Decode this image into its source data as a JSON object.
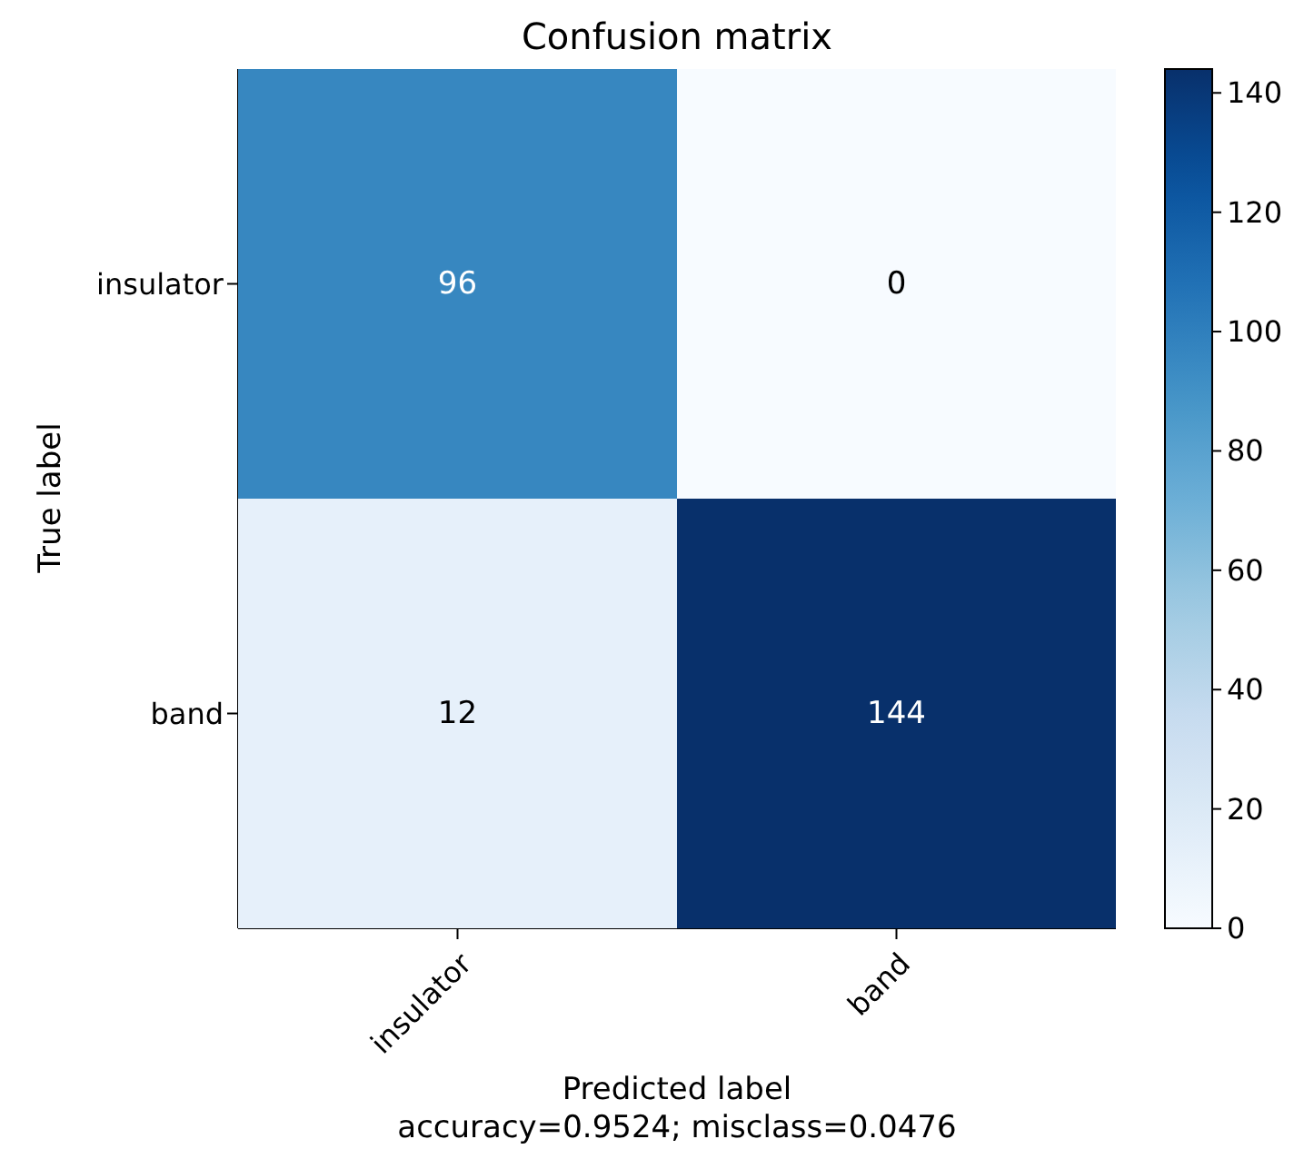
{
  "chart_data": {
    "type": "heatmap",
    "title": "Confusion matrix",
    "xlabel": "Predicted label",
    "ylabel": "True label",
    "annotations": [
      "accuracy=0.9524; misclass=0.0476"
    ],
    "categories": [
      "insulator",
      "band"
    ],
    "y_categories": [
      "insulator",
      "band"
    ],
    "cells": [
      [
        96,
        0
      ],
      [
        12,
        144
      ]
    ],
    "clim": [
      0,
      144
    ],
    "cticks": [
      0,
      20,
      40,
      60,
      80,
      100,
      120,
      140
    ],
    "data_labels": true
  }
}
